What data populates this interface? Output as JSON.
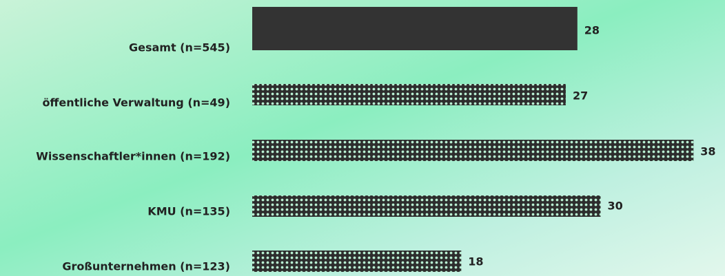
{
  "chart_data": {
    "type": "bar",
    "orientation": "horizontal",
    "categories": [
      "Gesamt (n=545)",
      "öffentliche Verwaltung (n=49)",
      "Wissenschaftler*innen (n=192)",
      "KMU (n=135)",
      "Großunternehmen (n=123)"
    ],
    "values": [
      28,
      27,
      38,
      30,
      18
    ],
    "color": "#333333",
    "fill_styles": [
      "solid",
      "checker",
      "checker",
      "checker",
      "checker"
    ],
    "xlim": [
      0,
      40
    ],
    "grid": false
  }
}
